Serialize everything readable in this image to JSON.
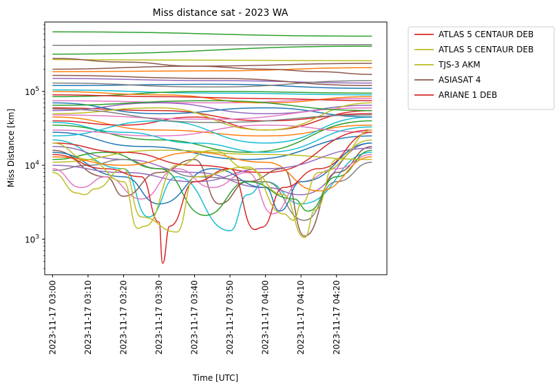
{
  "chart_data": {
    "type": "line",
    "title": "Miss distance sat - 2023 WA",
    "xlabel": "Time [UTC]",
    "ylabel": "Miss Distance [km]",
    "yscale": "log",
    "ylim": [
      330,
      870000
    ],
    "xlim_minutes": [
      -2.2,
      94.2
    ],
    "x_start": "2023-11-17 03:00",
    "x_end": "2023-11-17 04:30",
    "x_ticks": [
      {
        "minute": 0,
        "label": "2023-11-17 03:00"
      },
      {
        "minute": 10,
        "label": "2023-11-17 03:10"
      },
      {
        "minute": 20,
        "label": "2023-11-17 03:20"
      },
      {
        "minute": 30,
        "label": "2023-11-17 03:30"
      },
      {
        "minute": 40,
        "label": "2023-11-17 03:40"
      },
      {
        "minute": 50,
        "label": "2023-11-17 03:50"
      },
      {
        "minute": 60,
        "label": "2023-11-17 04:00"
      },
      {
        "minute": 70,
        "label": "2023-11-17 04:10"
      },
      {
        "minute": 80,
        "label": "2023-11-17 04:20"
      }
    ],
    "y_ticks": [
      {
        "value": 1000,
        "label": "10",
        "exp": "3"
      },
      {
        "value": 10000,
        "label": "10",
        "exp": "4"
      },
      {
        "value": 100000,
        "label": "10",
        "exp": "5"
      }
    ],
    "legend_position": "outside-top-right",
    "series": [
      {
        "name": "ATLAS 5 CENTAUR DEB",
        "color": "#d62728",
        "x": [
          0,
          15,
          25,
          30,
          31,
          33,
          40,
          50,
          57,
          59,
          65,
          75,
          90
        ],
        "y": [
          14000,
          9000,
          7000,
          1700,
          470,
          1500,
          6000,
          9000,
          1350,
          1450,
          5000,
          9000,
          28000
        ]
      },
      {
        "name": "ATLAS 5 CENTAUR DEB",
        "color": "#bcbd22",
        "x": [
          0,
          7,
          9,
          12,
          20,
          25,
          35,
          40,
          55,
          65,
          68,
          70,
          75,
          90
        ],
        "y": [
          8000,
          4200,
          4000,
          4800,
          9000,
          2000,
          1250,
          7000,
          9500,
          2200,
          1800,
          3000,
          8000,
          22000
        ]
      },
      {
        "name": "TJS-3 AKM",
        "color": "#bcbd22",
        "x": [
          0,
          10,
          20,
          24,
          26,
          35,
          45,
          55,
          65,
          71,
          74,
          80,
          90
        ],
        "y": [
          20000,
          12000,
          6000,
          1400,
          1500,
          10000,
          16000,
          9000,
          4000,
          1050,
          2500,
          12000,
          30000
        ]
      },
      {
        "name": "ASIASAT 4",
        "color": "#8c564b",
        "x": [
          0,
          20,
          40,
          60,
          75,
          90
        ],
        "y": [
          280000,
          250000,
          220000,
          200000,
          185000,
          170000
        ]
      },
      {
        "name": "ARIANE 1 DEB",
        "color": "#d62728",
        "x": [
          0,
          30,
          60,
          90
        ],
        "y": [
          90000,
          85000,
          80000,
          75000
        ]
      },
      {
        "name": "",
        "color": "#2ca02c",
        "x": [
          0,
          90
        ],
        "y": [
          640000,
          560000
        ]
      },
      {
        "name": "",
        "color": "#2ca02c",
        "x": [
          0,
          90
        ],
        "y": [
          320000,
          410000
        ]
      },
      {
        "name": "",
        "color": "#7f7f7f",
        "x": [
          0,
          90
        ],
        "y": [
          420000,
          430000
        ]
      },
      {
        "name": "",
        "color": "#bcbd22",
        "x": [
          0,
          45,
          90
        ],
        "y": [
          270000,
          265000,
          260000
        ]
      },
      {
        "name": "",
        "color": "#8c564b",
        "x": [
          0,
          40,
          90
        ],
        "y": [
          200000,
          220000,
          240000
        ]
      },
      {
        "name": "",
        "color": "#ff7f0e",
        "x": [
          0,
          45,
          90
        ],
        "y": [
          185000,
          190000,
          210000
        ]
      },
      {
        "name": "",
        "color": "#9467bd",
        "x": [
          0,
          45,
          90
        ],
        "y": [
          150000,
          140000,
          130000
        ]
      },
      {
        "name": "",
        "color": "#1f77b4",
        "x": [
          0,
          45,
          90
        ],
        "y": [
          120000,
          125000,
          110000
        ]
      },
      {
        "name": "",
        "color": "#17becf",
        "x": [
          0,
          45,
          90
        ],
        "y": [
          105000,
          95000,
          90000
        ]
      },
      {
        "name": "",
        "color": "#e377c2",
        "x": [
          0,
          45,
          90
        ],
        "y": [
          75000,
          70000,
          80000
        ]
      },
      {
        "name": "",
        "color": "#d62728",
        "x": [
          0,
          30,
          60,
          90
        ],
        "y": [
          60000,
          55000,
          40000,
          50000
        ]
      },
      {
        "name": "",
        "color": "#ff7f0e",
        "x": [
          0,
          30,
          60,
          90
        ],
        "y": [
          45000,
          30000,
          25000,
          35000
        ]
      },
      {
        "name": "",
        "color": "#2ca02c",
        "x": [
          0,
          30,
          55,
          90
        ],
        "y": [
          35000,
          22000,
          15000,
          40000
        ]
      },
      {
        "name": "",
        "color": "#1f77b4",
        "x": [
          0,
          25,
          55,
          90
        ],
        "y": [
          28000,
          18000,
          12000,
          25000
        ]
      },
      {
        "name": "",
        "color": "#17becf",
        "x": [
          0,
          20,
          27,
          35,
          50,
          55,
          60,
          70,
          90
        ],
        "y": [
          22000,
          9000,
          2000,
          7000,
          1300,
          4000,
          6000,
          3000,
          15000
        ]
      },
      {
        "name": "",
        "color": "#9467bd",
        "x": [
          0,
          20,
          40,
          60,
          70,
          90
        ],
        "y": [
          18000,
          12000,
          8000,
          5000,
          4000,
          20000
        ]
      },
      {
        "name": "",
        "color": "#7f7f7f",
        "x": [
          0,
          10,
          20,
          30,
          40,
          60,
          71,
          80,
          90
        ],
        "y": [
          8500,
          10000,
          12000,
          9000,
          7000,
          6000,
          1800,
          6000,
          11000
        ]
      },
      {
        "name": "",
        "color": "#8c564b",
        "x": [
          0,
          15,
          20,
          30,
          40,
          47,
          55,
          65,
          71,
          80,
          90
        ],
        "y": [
          16000,
          7000,
          3800,
          8000,
          12000,
          3000,
          6000,
          9000,
          1100,
          8000,
          18000
        ]
      },
      {
        "name": "",
        "color": "#e377c2",
        "x": [
          0,
          8,
          15,
          25,
          35,
          45,
          55,
          62,
          70,
          80,
          90
        ],
        "y": [
          9000,
          5000,
          7000,
          3500,
          9000,
          5000,
          8000,
          2200,
          6000,
          9000,
          14000
        ]
      },
      {
        "name": "",
        "color": "#2ca02c",
        "x": [
          0,
          15,
          30,
          43,
          55,
          68,
          72,
          80,
          90
        ],
        "y": [
          12000,
          15000,
          9000,
          2100,
          6000,
          3500,
          2400,
          7000,
          16000
        ]
      },
      {
        "name": "",
        "color": "#1f77b4",
        "x": [
          0,
          20,
          30,
          45,
          60,
          64,
          70,
          90
        ],
        "y": [
          15000,
          7000,
          3000,
          9000,
          5000,
          2400,
          6000,
          20000
        ]
      },
      {
        "name": "",
        "color": "#bcbd22",
        "x": [
          0,
          30,
          60,
          90
        ],
        "y": [
          11000,
          16000,
          14000,
          12000
        ]
      },
      {
        "name": "",
        "color": "#ff7f0e",
        "x": [
          0,
          20,
          40,
          60,
          75,
          90
        ],
        "y": [
          13000,
          10000,
          15000,
          11000,
          4500,
          13000
        ]
      },
      {
        "name": "",
        "color": "#d62728",
        "x": [
          0,
          20,
          40,
          60,
          90
        ],
        "y": [
          40000,
          35000,
          45000,
          30000,
          55000
        ]
      },
      {
        "name": "",
        "color": "#9467bd",
        "x": [
          0,
          30,
          60,
          90
        ],
        "y": [
          55000,
          70000,
          50000,
          65000
        ]
      },
      {
        "name": "",
        "color": "#17becf",
        "x": [
          0,
          30,
          60,
          90
        ],
        "y": [
          25000,
          40000,
          20000,
          45000
        ]
      },
      {
        "name": "",
        "color": "#e377c2",
        "x": [
          0,
          30,
          60,
          90
        ],
        "y": [
          30000,
          25000,
          35000,
          28000
        ]
      },
      {
        "name": "",
        "color": "#2ca02c",
        "x": [
          0,
          45,
          90
        ],
        "y": [
          85000,
          100000,
          95000
        ]
      },
      {
        "name": "",
        "color": "#7f7f7f",
        "x": [
          0,
          45,
          90
        ],
        "y": [
          130000,
          115000,
          140000
        ]
      },
      {
        "name": "",
        "color": "#8c564b",
        "x": [
          0,
          45,
          90
        ],
        "y": [
          165000,
          150000,
          120000
        ]
      },
      {
        "name": "",
        "color": "#1f77b4",
        "x": [
          0,
          30,
          60,
          90
        ],
        "y": [
          70000,
          50000,
          60000,
          45000
        ]
      },
      {
        "name": "",
        "color": "#ff7f0e",
        "x": [
          0,
          30,
          60,
          90
        ],
        "y": [
          100000,
          90000,
          70000,
          85000
        ]
      },
      {
        "name": "",
        "color": "#bcbd22",
        "x": [
          0,
          30,
          60,
          90
        ],
        "y": [
          50000,
          60000,
          30000,
          70000
        ]
      },
      {
        "name": "",
        "color": "#d62728",
        "x": [
          0,
          20,
          40,
          60,
          90
        ],
        "y": [
          20000,
          15000,
          10000,
          8000,
          30000
        ]
      },
      {
        "name": "",
        "color": "#9467bd",
        "x": [
          0,
          20,
          40,
          60,
          90
        ],
        "y": [
          10000,
          8000,
          6000,
          9000,
          17000
        ]
      },
      {
        "name": "",
        "color": "#17becf",
        "x": [
          0,
          20,
          40,
          60,
          90
        ],
        "y": [
          38000,
          28000,
          20000,
          15000,
          33000
        ]
      },
      {
        "name": "",
        "color": "#e377c2",
        "x": [
          0,
          45,
          90
        ],
        "y": [
          48000,
          42000,
          60000
        ]
      },
      {
        "name": "",
        "color": "#2ca02c",
        "x": [
          0,
          45,
          90
        ],
        "y": [
          65000,
          75000,
          55000
        ]
      },
      {
        "name": "",
        "color": "#7f7f7f",
        "x": [
          0,
          45,
          90
        ],
        "y": [
          58000,
          38000,
          48000
        ]
      }
    ]
  }
}
